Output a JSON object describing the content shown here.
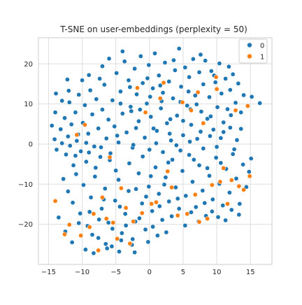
{
  "chart_data": {
    "type": "scatter",
    "title": "T-SNE on user-embeddings (perplexity = 50)",
    "xlabel": "",
    "ylabel": "",
    "xlim": [
      -16.5,
      18.2
    ],
    "ylim": [
      -30,
      26.5
    ],
    "xticks": [
      -15,
      -10,
      -5,
      0,
      5,
      10,
      15
    ],
    "yticks": [
      -20,
      -10,
      0,
      10,
      20
    ],
    "grid": true,
    "legend_position": "top-right",
    "series": [
      {
        "name": "0",
        "color": "#1f77b4",
        "points": [
          [
            -14.5,
            4.6
          ],
          [
            -14.1,
            1.2
          ],
          [
            -13.8,
            -1.4
          ],
          [
            -13.2,
            3.7
          ],
          [
            -13.0,
            0.2
          ],
          [
            -12.6,
            6.5
          ],
          [
            -12.4,
            -2.6
          ],
          [
            -12.1,
            1.9
          ],
          [
            -11.9,
            10.4
          ],
          [
            -11.6,
            4.9
          ],
          [
            -11.3,
            -5.3
          ],
          [
            -11.0,
            7.9
          ],
          [
            -10.8,
            0.8
          ],
          [
            -10.5,
            12.3
          ],
          [
            -10.2,
            -1.8
          ],
          [
            -9.9,
            5.3
          ],
          [
            -9.6,
            9.7
          ],
          [
            -9.4,
            -4.4
          ],
          [
            -9.1,
            2.6
          ],
          [
            -8.8,
            13.4
          ],
          [
            -8.5,
            7.4
          ],
          [
            -8.2,
            -0.6
          ],
          [
            -7.9,
            11.2
          ],
          [
            -7.6,
            3.9
          ],
          [
            -7.3,
            -3.2
          ],
          [
            -7.0,
            8.6
          ],
          [
            -6.7,
            14.8
          ],
          [
            -6.4,
            1.4
          ],
          [
            -6.1,
            6.1
          ],
          [
            -5.8,
            -2.3
          ],
          [
            -5.5,
            10.9
          ],
          [
            -5.2,
            4.4
          ],
          [
            -4.9,
            17.7
          ],
          [
            -4.6,
            0.4
          ],
          [
            -4.3,
            13.1
          ],
          [
            -4.0,
            7.6
          ],
          [
            -3.7,
            20.6
          ],
          [
            -3.4,
            2.9
          ],
          [
            -3.1,
            15.9
          ],
          [
            -2.8,
            9.3
          ],
          [
            -2.5,
            -0.9
          ],
          [
            -2.2,
            18.8
          ],
          [
            -1.9,
            12.4
          ],
          [
            -1.6,
            5.7
          ],
          [
            -1.3,
            21.9
          ],
          [
            -1.0,
            15.2
          ],
          [
            -0.7,
            1.6
          ],
          [
            -0.4,
            10.1
          ],
          [
            -0.1,
            19.7
          ],
          [
            0.2,
            6.8
          ],
          [
            0.5,
            13.9
          ],
          [
            0.8,
            22.6
          ],
          [
            1.1,
            3.3
          ],
          [
            1.4,
            17.1
          ],
          [
            1.7,
            8.9
          ],
          [
            2.0,
            12.8
          ],
          [
            2.3,
            20.3
          ],
          [
            2.6,
            5.2
          ],
          [
            2.9,
            15.6
          ],
          [
            3.2,
            0.9
          ],
          [
            3.5,
            11.4
          ],
          [
            3.8,
            18.4
          ],
          [
            4.1,
            7.1
          ],
          [
            4.4,
            23.8
          ],
          [
            4.7,
            14.3
          ],
          [
            5.0,
            2.2
          ],
          [
            5.3,
            19.1
          ],
          [
            5.6,
            9.6
          ],
          [
            5.9,
            16.7
          ],
          [
            6.2,
            4.8
          ],
          [
            6.5,
            21.2
          ],
          [
            6.8,
            12.1
          ],
          [
            7.1,
            1.3
          ],
          [
            7.4,
            17.9
          ],
          [
            7.7,
            8.1
          ],
          [
            8.0,
            14.9
          ],
          [
            8.3,
            20.8
          ],
          [
            8.6,
            6.3
          ],
          [
            8.9,
            11.7
          ],
          [
            9.2,
            18.2
          ],
          [
            9.5,
            3.6
          ],
          [
            9.8,
            15.4
          ],
          [
            10.1,
            9.2
          ],
          [
            10.4,
            20.1
          ],
          [
            10.7,
            12.6
          ],
          [
            11.0,
            5.4
          ],
          [
            11.3,
            16.3
          ],
          [
            11.6,
            8.7
          ],
          [
            12.0,
            13.5
          ],
          [
            12.4,
            17.4
          ],
          [
            12.8,
            10.3
          ],
          [
            13.2,
            15.1
          ],
          [
            13.6,
            7.9
          ],
          [
            14.0,
            12.2
          ],
          [
            14.6,
            9.6
          ],
          [
            15.2,
            11.8
          ],
          [
            16.4,
            10.2
          ],
          [
            -12.8,
            -8.7
          ],
          [
            -12.1,
            -11.8
          ],
          [
            -11.4,
            -14.6
          ],
          [
            -10.9,
            -7.5
          ],
          [
            -10.3,
            -17.3
          ],
          [
            -9.8,
            -10.2
          ],
          [
            -9.2,
            -20.4
          ],
          [
            -8.7,
            -13.3
          ],
          [
            -8.1,
            -8.1
          ],
          [
            -7.6,
            -23.4
          ],
          [
            -7.1,
            -16.1
          ],
          [
            -6.6,
            -11.1
          ],
          [
            -6.1,
            -19.6
          ],
          [
            -5.6,
            -25.5
          ],
          [
            -5.1,
            -14.1
          ],
          [
            -4.6,
            -8.9
          ],
          [
            -4.1,
            -22.2
          ],
          [
            -3.6,
            -17.4
          ],
          [
            -3.1,
            -11.7
          ],
          [
            -2.6,
            -25.1
          ],
          [
            -2.1,
            -19.3
          ],
          [
            -1.6,
            -7.3
          ],
          [
            -1.1,
            -14.8
          ],
          [
            -0.6,
            -21.3
          ],
          [
            -0.1,
            -10.6
          ],
          [
            0.4,
            -16.7
          ],
          [
            0.9,
            -5.8
          ],
          [
            1.4,
            -12.4
          ],
          [
            1.9,
            -18.9
          ],
          [
            2.4,
            -8.3
          ],
          [
            2.9,
            -14.3
          ],
          [
            3.4,
            -3.9
          ],
          [
            3.9,
            -10.8
          ],
          [
            4.4,
            -16.1
          ],
          [
            4.9,
            -6.7
          ],
          [
            5.4,
            -12.9
          ],
          [
            5.9,
            -2.7
          ],
          [
            6.4,
            -9.4
          ],
          [
            6.9,
            -15.7
          ],
          [
            7.4,
            -5.3
          ],
          [
            7.9,
            -11.6
          ],
          [
            8.4,
            -17.9
          ],
          [
            8.9,
            -7.9
          ],
          [
            9.4,
            -13.8
          ],
          [
            9.9,
            -3.4
          ],
          [
            10.4,
            -9.9
          ],
          [
            10.9,
            -15.3
          ],
          [
            11.4,
            -6.2
          ],
          [
            11.9,
            -12.1
          ],
          [
            12.4,
            -2.5
          ],
          [
            12.9,
            -8.6
          ],
          [
            13.4,
            -14.9
          ],
          [
            13.9,
            -5.1
          ],
          [
            14.4,
            -10.7
          ],
          [
            14.8,
            -6.9
          ],
          [
            15.1,
            -3.6
          ],
          [
            -13.5,
            -18.3
          ],
          [
            -12.5,
            -21.8
          ],
          [
            -11.5,
            -24.5
          ],
          [
            -10.5,
            -19.7
          ],
          [
            -9.5,
            -26.3
          ],
          [
            -8.5,
            -22.6
          ],
          [
            -7.5,
            -18.8
          ],
          [
            -6.5,
            -24.9
          ],
          [
            -5.5,
            -21.1
          ],
          [
            -4.5,
            -26.8
          ],
          [
            -3.5,
            -20.3
          ],
          [
            -2.5,
            -23.7
          ],
          [
            -1.5,
            -18.5
          ],
          [
            -0.5,
            -13.1
          ],
          [
            0.5,
            -20.6
          ],
          [
            1.5,
            -15.5
          ],
          [
            2.5,
            -22.0
          ],
          [
            -14.0,
            7.9
          ],
          [
            -13.0,
            10.8
          ],
          [
            -12.0,
            13.3
          ],
          [
            -11.0,
            -2.9
          ],
          [
            -10.0,
            15.9
          ],
          [
            -9.0,
            17.2
          ],
          [
            -8.0,
            -5.9
          ],
          [
            -7.0,
            19.4
          ],
          [
            -6.0,
            21.3
          ],
          [
            -5.0,
            -6.6
          ],
          [
            -4.0,
            23.1
          ],
          [
            -3.0,
            -4.8
          ],
          [
            -2.0,
            4.0
          ],
          [
            -1.0,
            -3.1
          ],
          [
            0.0,
            -1.4
          ],
          [
            1.0,
            0.2
          ],
          [
            2.0,
            -2.0
          ],
          [
            3.0,
            2.6
          ],
          [
            4.0,
            -0.3
          ],
          [
            5.0,
            5.8
          ],
          [
            6.0,
            0.6
          ],
          [
            7.0,
            9.9
          ],
          [
            8.0,
            -1.1
          ],
          [
            9.0,
            2.0
          ],
          [
            10.0,
            -0.7
          ],
          [
            11.0,
            3.0
          ],
          [
            12.0,
            4.1
          ],
          [
            13.0,
            1.0
          ],
          [
            -2.7,
            8.2
          ],
          [
            -0.3,
            16.4
          ],
          [
            1.8,
            10.7
          ],
          [
            3.6,
            20.9
          ],
          [
            5.8,
            13.1
          ],
          [
            7.6,
            22.3
          ],
          [
            9.6,
            17.1
          ],
          [
            11.8,
            19.3
          ],
          [
            -11.8,
            -0.4
          ],
          [
            -9.4,
            0.3
          ],
          [
            -7.2,
            -0.8
          ],
          [
            -4.8,
            2.1
          ],
          [
            -2.4,
            -0.2
          ],
          [
            0.6,
            3.9
          ],
          [
            2.8,
            -4.6
          ],
          [
            4.6,
            -1.6
          ],
          [
            6.6,
            -3.9
          ],
          [
            8.6,
            -6.0
          ],
          [
            10.6,
            -4.7
          ],
          [
            12.6,
            -1.3
          ],
          [
            -8.9,
            -16.9
          ],
          [
            -6.8,
            -13.8
          ],
          [
            -4.4,
            -15.6
          ],
          [
            -2.0,
            -11.2
          ],
          [
            0.2,
            -8.0
          ],
          [
            2.2,
            -10.1
          ],
          [
            4.2,
            -13.6
          ],
          [
            6.2,
            -17.0
          ],
          [
            8.2,
            -14.7
          ],
          [
            10.2,
            -18.2
          ],
          [
            12.2,
            -16.4
          ],
          [
            -13.9,
            12.6
          ],
          [
            -12.2,
            16.1
          ],
          [
            -10.6,
            2.4
          ],
          [
            -9.0,
            -2.1
          ],
          [
            -7.4,
            16.3
          ],
          [
            -5.9,
            -4.0
          ],
          [
            -4.3,
            10.1
          ],
          [
            -2.9,
            14.2
          ],
          [
            -1.4,
            8.6
          ],
          [
            0.1,
            11.8
          ],
          [
            1.6,
            14.6
          ],
          [
            3.1,
            6.2
          ],
          [
            4.6,
            10.5
          ],
          [
            6.1,
            8.7
          ],
          [
            7.6,
            3.1
          ],
          [
            9.1,
            6.9
          ],
          [
            10.6,
            1.5
          ],
          [
            12.1,
            7.2
          ],
          [
            13.6,
            3.8
          ],
          [
            -8.3,
            -27.2
          ],
          [
            -6.3,
            -26.0
          ],
          [
            -4.2,
            -24.0
          ],
          [
            -2.2,
            -27.0
          ],
          [
            -0.2,
            -24.4
          ],
          [
            1.2,
            -22.8
          ],
          [
            3.3,
            -18.0
          ],
          [
            5.3,
            -20.3
          ],
          [
            7.3,
            -19.3
          ],
          [
            9.3,
            -16.8
          ],
          [
            11.3,
            -19.0
          ],
          [
            13.3,
            -17.6
          ]
        ]
      },
      {
        "name": "1",
        "color": "#ff7f0e",
        "points": [
          [
            -14.0,
            -14.2
          ],
          [
            -12.6,
            -22.5
          ],
          [
            -11.9,
            -20.1
          ],
          [
            -10.8,
            2.3
          ],
          [
            -10.2,
            -22.8
          ],
          [
            -9.6,
            4.8
          ],
          [
            -8.9,
            -20.7
          ],
          [
            -8.3,
            -17.4
          ],
          [
            -7.6,
            -26.5
          ],
          [
            -7.0,
            -13.3
          ],
          [
            -6.4,
            -18.6
          ],
          [
            -5.9,
            -3.3
          ],
          [
            -5.4,
            -19.6
          ],
          [
            -4.8,
            -23.6
          ],
          [
            -4.2,
            -11.0
          ],
          [
            -3.5,
            -15.9
          ],
          [
            -2.9,
            -24.8
          ],
          [
            -2.4,
            -19.3
          ],
          [
            -1.8,
            14.0
          ],
          [
            -1.1,
            -17.2
          ],
          [
            -0.6,
            7.9
          ],
          [
            0.3,
            -14.9
          ],
          [
            1.0,
            -14.5
          ],
          [
            1.6,
            11.4
          ],
          [
            2.1,
            15.3
          ],
          [
            2.7,
            -6.8
          ],
          [
            3.3,
            -10.8
          ],
          [
            4.2,
            -17.8
          ],
          [
            4.9,
            10.4
          ],
          [
            5.6,
            -17.4
          ],
          [
            6.2,
            8.4
          ],
          [
            6.8,
            -12.6
          ],
          [
            7.4,
            -19.4
          ],
          [
            8.0,
            5.2
          ],
          [
            8.6,
            -18.6
          ],
          [
            9.3,
            -10.2
          ],
          [
            10.0,
            13.7
          ],
          [
            10.5,
            -9.4
          ],
          [
            11.0,
            -6.0
          ],
          [
            11.6,
            -14.9
          ],
          [
            12.2,
            -9.0
          ],
          [
            12.8,
            8.4
          ],
          [
            13.3,
            -10.5
          ],
          [
            14.0,
            -11.4
          ],
          [
            14.6,
            9.5
          ],
          [
            14.9,
            -8.0
          ],
          [
            7.2,
            12.9
          ],
          [
            9.9,
            16.7
          ]
        ]
      }
    ]
  }
}
